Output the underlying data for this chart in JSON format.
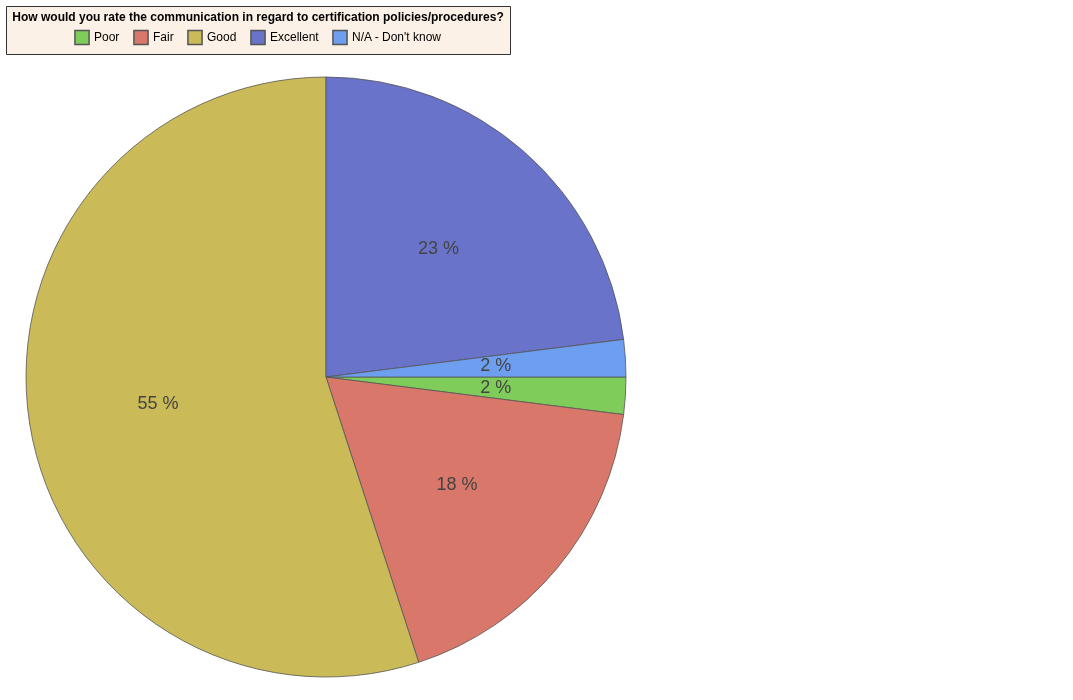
{
  "chart_data": {
    "type": "pie",
    "legend_title": "How would you rate the communication in regard to certification policies/procedures?",
    "categories": [
      "Poor",
      "Fair",
      "Good",
      "Excellent",
      "N/A - Don't know"
    ],
    "values": [
      2,
      18,
      55,
      23,
      2
    ],
    "colors": [
      "#7fcc5a",
      "#d9786a",
      "#cbbb58",
      "#6873c9",
      "#6d9ef0"
    ],
    "value_labels": [
      "2 %",
      "18 %",
      "55 %",
      "23 %",
      "2 %"
    ],
    "legend": "top"
  }
}
